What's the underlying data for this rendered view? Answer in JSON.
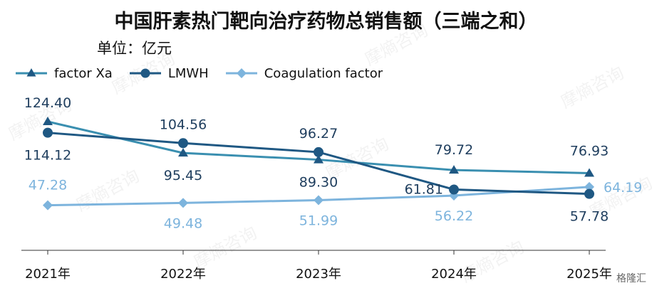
{
  "title": "中国肝素热门靶向治疗药物总销售额（三端之和）",
  "unit_label": "单位：亿元",
  "watermark_text": "摩熵咨询",
  "corner_text": "格隆汇",
  "chart_data": {
    "type": "line",
    "title": "中国肝素热门靶向治疗药物总销售额（三端之和）",
    "ylabel": "单位：亿元",
    "xlabel": "",
    "categories": [
      "2021年",
      "2022年",
      "2023年",
      "2024年",
      "2025年"
    ],
    "ylim": [
      30,
      135
    ],
    "grid": false,
    "legend_position": "top-left",
    "series": [
      {
        "name": "factor Xa",
        "values": [
          124.4,
          95.45,
          89.3,
          79.72,
          76.93
        ],
        "labels": [
          "124.40",
          "95.45",
          "89.30",
          "79.72",
          "76.93"
        ],
        "color": "#3a8fb0",
        "marker": "triangle"
      },
      {
        "name": "LMWH",
        "values": [
          114.12,
          104.56,
          96.27,
          61.81,
          57.78
        ],
        "labels": [
          "114.12",
          "104.56",
          "96.27",
          "61.81",
          "57.78"
        ],
        "color": "#1f5883",
        "marker": "circle"
      },
      {
        "name": "Coagulation factor",
        "values": [
          47.28,
          49.48,
          51.99,
          56.22,
          64.19
        ],
        "labels": [
          "47.28",
          "49.48",
          "51.99",
          "56.22",
          "64.19"
        ],
        "color": "#7db4dd",
        "marker": "diamond"
      }
    ]
  }
}
